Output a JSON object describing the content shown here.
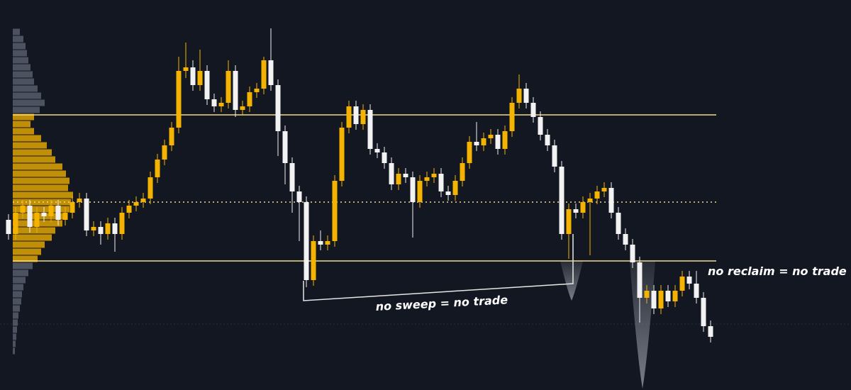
{
  "chart_data": {
    "type": "candlestick",
    "ylim": [
      0,
      550
    ],
    "up_color": "#f5b301",
    "down_color": "#f2f2f2",
    "level_color": "#f3dc8a",
    "levels": [
      388,
      265,
      182
    ],
    "candles": [
      [
        240,
        248,
        212,
        220
      ],
      [
        220,
        258,
        212,
        250
      ],
      [
        250,
        268,
        242,
        260
      ],
      [
        260,
        268,
        222,
        230
      ],
      [
        230,
        258,
        222,
        250
      ],
      [
        250,
        258,
        237,
        245
      ],
      [
        245,
        268,
        237,
        260
      ],
      [
        260,
        268,
        232,
        240
      ],
      [
        240,
        258,
        232,
        250
      ],
      [
        250,
        273,
        242,
        265
      ],
      [
        265,
        278,
        257,
        270
      ],
      [
        270,
        278,
        217,
        225
      ],
      [
        225,
        238,
        217,
        230
      ],
      [
        230,
        238,
        205,
        220
      ],
      [
        220,
        243,
        212,
        235
      ],
      [
        235,
        243,
        195,
        220
      ],
      [
        220,
        258,
        212,
        250
      ],
      [
        250,
        268,
        242,
        260
      ],
      [
        260,
        273,
        252,
        265
      ],
      [
        265,
        278,
        257,
        270
      ],
      [
        270,
        308,
        262,
        300
      ],
      [
        300,
        333,
        292,
        325
      ],
      [
        325,
        353,
        317,
        345
      ],
      [
        345,
        378,
        337,
        370
      ],
      [
        370,
        470,
        362,
        450
      ],
      [
        450,
        490,
        440,
        455
      ],
      [
        455,
        465,
        422,
        430
      ],
      [
        430,
        480,
        422,
        450
      ],
      [
        450,
        458,
        402,
        410
      ],
      [
        410,
        418,
        392,
        400
      ],
      [
        400,
        413,
        392,
        405
      ],
      [
        405,
        465,
        397,
        450
      ],
      [
        450,
        458,
        385,
        395
      ],
      [
        395,
        408,
        387,
        400
      ],
      [
        400,
        428,
        392,
        420
      ],
      [
        420,
        433,
        412,
        425
      ],
      [
        425,
        470,
        417,
        465
      ],
      [
        465,
        510,
        422,
        430
      ],
      [
        430,
        438,
        330,
        365
      ],
      [
        365,
        373,
        290,
        320
      ],
      [
        320,
        328,
        250,
        280
      ],
      [
        280,
        288,
        210,
        265
      ],
      [
        265,
        273,
        145,
        155
      ],
      [
        155,
        218,
        147,
        210
      ],
      [
        210,
        225,
        197,
        205
      ],
      [
        205,
        218,
        197,
        210
      ],
      [
        210,
        303,
        202,
        295
      ],
      [
        295,
        378,
        287,
        370
      ],
      [
        370,
        408,
        362,
        400
      ],
      [
        400,
        408,
        367,
        375
      ],
      [
        375,
        403,
        367,
        395
      ],
      [
        395,
        403,
        332,
        340
      ],
      [
        340,
        348,
        327,
        335
      ],
      [
        335,
        343,
        312,
        320
      ],
      [
        320,
        328,
        282,
        290
      ],
      [
        290,
        313,
        282,
        305
      ],
      [
        305,
        313,
        292,
        300
      ],
      [
        300,
        308,
        215,
        265
      ],
      [
        265,
        303,
        257,
        295
      ],
      [
        295,
        308,
        287,
        300
      ],
      [
        300,
        313,
        292,
        305
      ],
      [
        305,
        313,
        272,
        280
      ],
      [
        280,
        288,
        267,
        275
      ],
      [
        275,
        303,
        267,
        295
      ],
      [
        295,
        328,
        287,
        320
      ],
      [
        320,
        358,
        312,
        350
      ],
      [
        350,
        378,
        337,
        345
      ],
      [
        345,
        363,
        337,
        355
      ],
      [
        355,
        368,
        347,
        360
      ],
      [
        360,
        368,
        332,
        340
      ],
      [
        340,
        373,
        332,
        365
      ],
      [
        365,
        413,
        357,
        405
      ],
      [
        405,
        445,
        397,
        425
      ],
      [
        425,
        433,
        397,
        405
      ],
      [
        405,
        413,
        377,
        385
      ],
      [
        385,
        393,
        352,
        360
      ],
      [
        360,
        368,
        337,
        345
      ],
      [
        345,
        353,
        307,
        315
      ],
      [
        315,
        323,
        212,
        220
      ],
      [
        220,
        263,
        185,
        255
      ],
      [
        255,
        263,
        242,
        250
      ],
      [
        250,
        273,
        242,
        265
      ],
      [
        265,
        278,
        190,
        270
      ],
      [
        270,
        288,
        262,
        280
      ],
      [
        280,
        293,
        272,
        285
      ],
      [
        285,
        293,
        242,
        250
      ],
      [
        250,
        258,
        212,
        220
      ],
      [
        220,
        228,
        197,
        205
      ],
      [
        205,
        213,
        172,
        180
      ],
      [
        180,
        188,
        95,
        130
      ],
      [
        130,
        148,
        122,
        140
      ],
      [
        140,
        148,
        107,
        115
      ],
      [
        115,
        148,
        107,
        140
      ],
      [
        140,
        148,
        117,
        125
      ],
      [
        125,
        148,
        117,
        140
      ],
      [
        140,
        168,
        132,
        160
      ],
      [
        160,
        168,
        142,
        150
      ],
      [
        150,
        168,
        122,
        130
      ],
      [
        130,
        138,
        82,
        90
      ],
      [
        90,
        98,
        67,
        75
      ]
    ],
    "profile_colors": [
      "#5d6170",
      "#e0a400"
    ],
    "profile_prices": [
      505,
      495,
      485,
      475,
      465,
      455,
      445,
      435,
      425,
      415,
      405,
      395,
      385,
      375,
      365,
      355,
      345,
      335,
      325,
      315,
      305,
      295,
      285,
      275,
      265,
      255,
      245,
      235,
      225,
      215,
      205,
      195,
      185,
      175,
      165,
      155,
      145,
      135,
      125,
      115,
      105,
      95,
      85,
      75,
      65,
      55
    ],
    "profile_volumes": [
      10,
      15,
      18,
      20,
      22,
      25,
      28,
      30,
      35,
      40,
      45,
      38,
      30,
      25,
      30,
      40,
      48,
      55,
      60,
      70,
      75,
      80,
      78,
      85,
      82,
      80,
      75,
      70,
      60,
      55,
      45,
      40,
      35,
      28,
      22,
      18,
      15,
      13,
      12,
      10,
      8,
      7,
      6,
      5,
      4,
      3
    ],
    "annotations": [
      "no sweep = no trade",
      "no reclaim = no trade"
    ]
  }
}
